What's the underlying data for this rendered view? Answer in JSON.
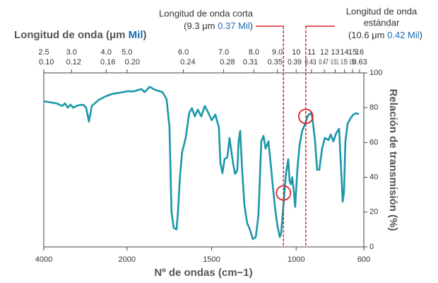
{
  "chart_data": {
    "type": "line",
    "title_parts": [
      "Longitud de onda (μm ",
      "Mil",
      ")"
    ],
    "x_label": "Nº de ondas (cm−1)",
    "y_label": "Relación de transmisión (%)",
    "xlim": [
      4000,
      600
    ],
    "xticks": [
      4000,
      2000,
      1500,
      1000,
      600
    ],
    "ylim": [
      0,
      100
    ],
    "yticks": [
      0,
      20,
      40,
      60,
      80,
      100
    ],
    "x2ticks": [
      2.5,
      {
        "value": 3,
        "label": "3.0"
      },
      {
        "value": 4,
        "label": "4.0"
      },
      {
        "value": 5,
        "label": "5.0"
      },
      {
        "value": 6,
        "label": "6.0"
      },
      {
        "value": 7,
        "label": "7.0"
      },
      {
        "value": 8,
        "label": "8.0"
      },
      {
        "value": 9,
        "label": "9.0"
      },
      10,
      11,
      12,
      13,
      14,
      15,
      16
    ],
    "x2ticks_mil": [
      {
        "value": 0.1,
        "label": "0.10"
      },
      0.12,
      0.16,
      {
        "value": 0.2,
        "label": "0.20"
      },
      0.24,
      0.28,
      0.31,
      0.35,
      0.39,
      0.43,
      0.47,
      0.51,
      0.55,
      0.59,
      0.63
    ],
    "series": [
      {
        "color": "#1a97a8",
        "x": [
          4000,
          3695,
          3559,
          3490,
          3424,
          3356,
          3288,
          3186,
          3051,
          2983,
          2915,
          2847,
          2678,
          2508,
          2339,
          2169,
          2000,
          1958,
          1916,
          1896,
          1866,
          1833,
          1791,
          1766,
          1749,
          1737,
          1724,
          1707,
          1699,
          1687,
          1674,
          1653,
          1632,
          1616,
          1599,
          1582,
          1561,
          1540,
          1519,
          1499,
          1478,
          1457,
          1448,
          1436,
          1423,
          1407,
          1394,
          1373,
          1361,
          1348,
          1340,
          1331,
          1319,
          1306,
          1290,
          1273,
          1256,
          1239,
          1223,
          1206,
          1193,
          1181,
          1164,
          1147,
          1135,
          1122,
          1110,
          1097,
          1089,
          1072,
          1060,
          1047,
          1039,
          1031,
          1023,
          1014,
          1006,
          993,
          980,
          964,
          947,
          930,
          914,
          905,
          888,
          876,
          863,
          847,
          830,
          809,
          796,
          780,
          763,
          746,
          734,
          725,
          717,
          709,
          696,
          680,
          663,
          646,
          629
        ],
        "values": [
          83.7,
          82.5,
          81,
          82.5,
          80,
          81.7,
          80,
          81.3,
          81.7,
          80,
          72,
          81,
          84.5,
          86.6,
          88,
          88.6,
          89.4,
          89.4,
          90.7,
          89,
          92,
          90.2,
          89,
          85,
          68.7,
          20,
          11,
          10,
          20,
          40,
          54.5,
          62.6,
          77,
          79.7,
          75,
          78.9,
          75,
          81,
          77,
          72.8,
          76,
          68.7,
          48.4,
          42.3,
          50.4,
          51.6,
          62.6,
          48,
          42,
          44,
          60.6,
          66.7,
          44,
          24,
          13.8,
          9.8,
          4.5,
          5.7,
          17.9,
          60.6,
          63.8,
          56.5,
          60.6,
          44.3,
          32,
          20,
          11.8,
          5.7,
          7.7,
          28,
          42.3,
          50.4,
          38,
          36,
          40,
          32,
          23,
          44.3,
          58.5,
          66.7,
          70.7,
          75.6,
          76.8,
          75,
          60.6,
          44.3,
          44.3,
          56.5,
          62.6,
          61.4,
          64.6,
          60.6,
          65.4,
          67.9,
          44.3,
          26,
          32,
          60.6,
          70.7,
          73.6,
          76,
          76.8,
          76.4
        ]
      }
    ],
    "annotations": [
      {
        "lines": [
          "Longitud de onda corta"
        ],
        "detail": [
          "(9.3 μm ",
          "0.37 Mil",
          ")"
        ],
        "x": 1075,
        "y": 31,
        "color": "#d9262c"
      },
      {
        "lines": [
          "Longitud de onda",
          "estándar"
        ],
        "detail": [
          "(10.6 μm ",
          "0.42 Mil",
          ")"
        ],
        "x": 943,
        "y": 75,
        "color": "#d9262c"
      }
    ],
    "accent_color": "#1a6eb5"
  }
}
